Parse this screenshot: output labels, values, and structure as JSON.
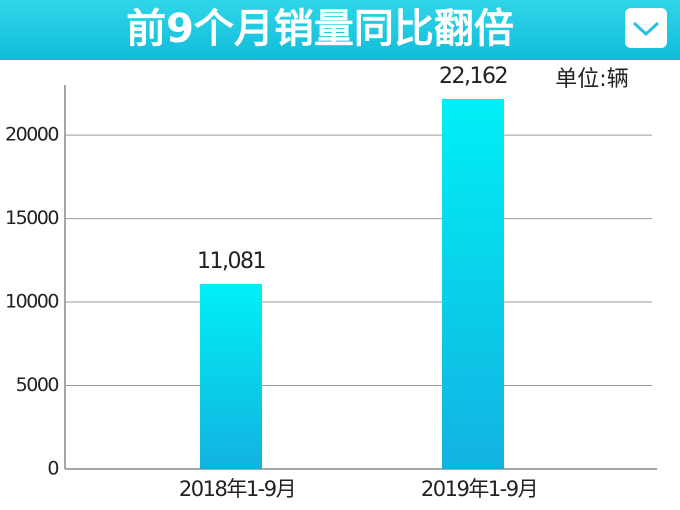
{
  "chart_data": {
    "type": "bar",
    "title": "前9个月销量同比翻倍",
    "unit_label": "单位:辆",
    "categories": [
      "2018年1-9月",
      "2019年1-9月"
    ],
    "values": [
      11081,
      22162
    ],
    "value_labels": [
      "11,081",
      "22,162"
    ],
    "colors": [
      "#00f0f6",
      "#12b2e0"
    ],
    "ylim": [
      0,
      23000
    ],
    "yticks": [
      0,
      5000,
      10000,
      15000,
      20000
    ],
    "grid": true
  }
}
